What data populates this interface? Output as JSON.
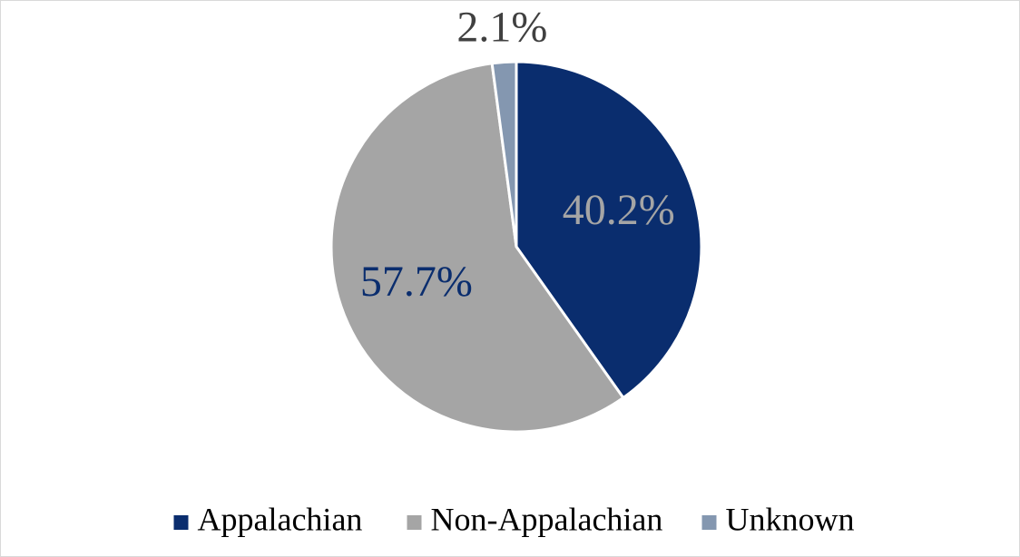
{
  "chart_data": {
    "type": "pie",
    "categories": [
      "Appalachian",
      "Non-Appalachian",
      "Unknown"
    ],
    "values": [
      40.2,
      57.7,
      2.1
    ],
    "value_labels": [
      "40.2%",
      "57.7%",
      "2.1%"
    ],
    "colors": [
      "#0a2d6e",
      "#a5a5a5",
      "#8497b0"
    ],
    "label_colors": [
      "#a5a5a5",
      "#0a2d6e",
      "#404040"
    ],
    "legend": "bottom"
  }
}
